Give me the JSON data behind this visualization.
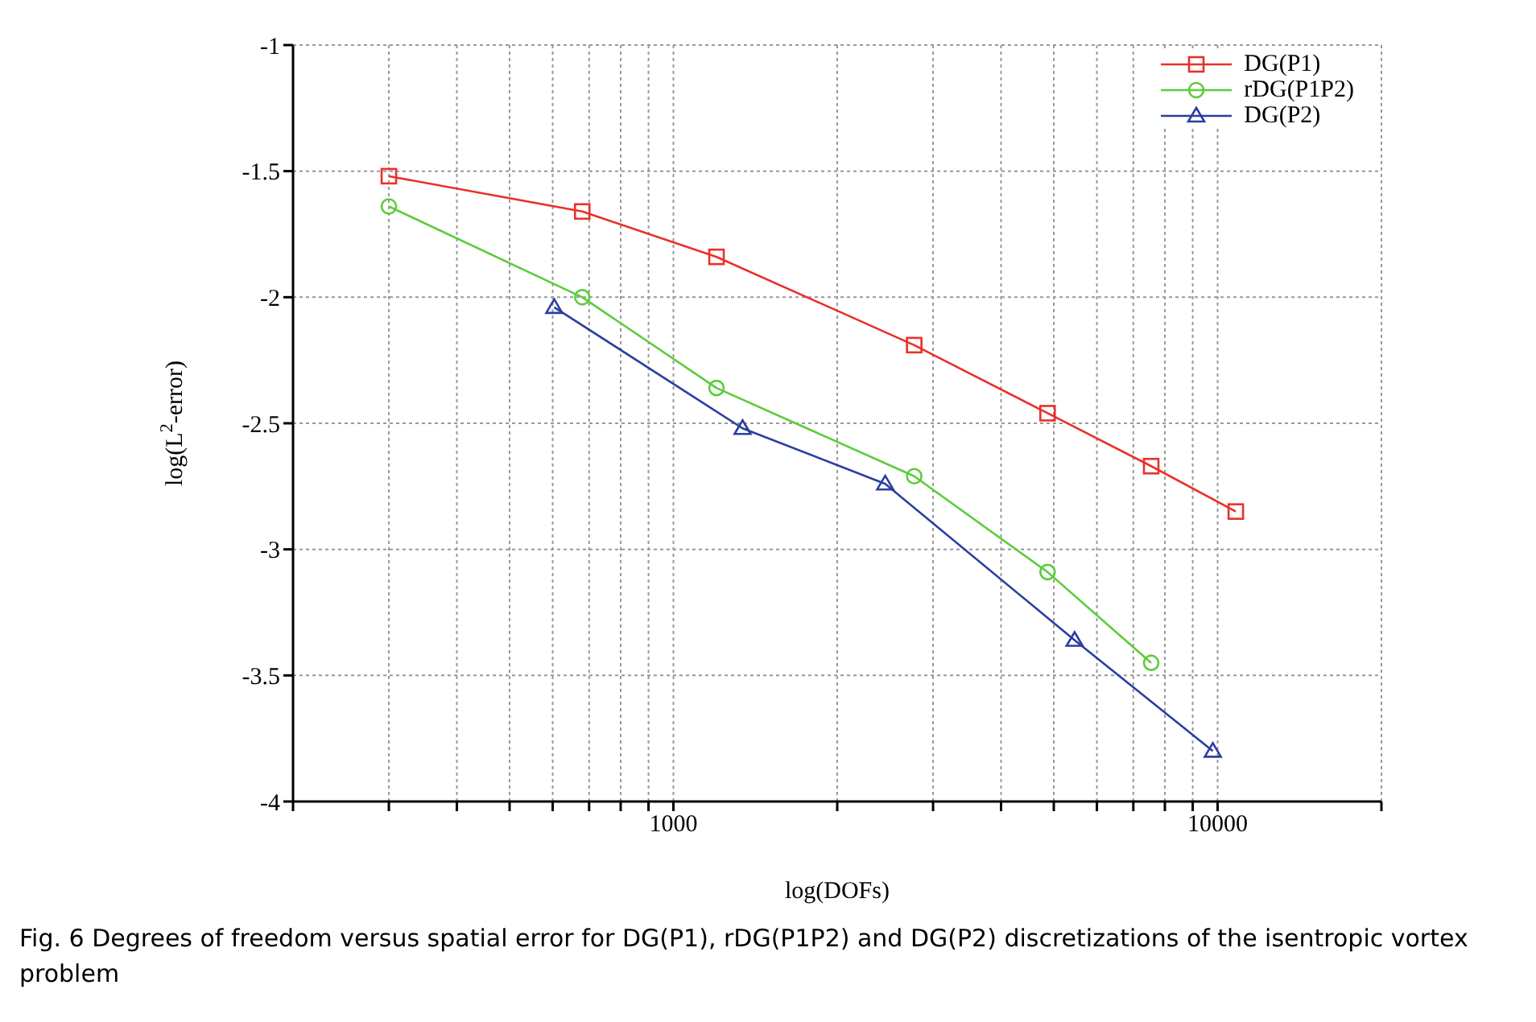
{
  "chart_data": {
    "type": "line",
    "xlabel": "log(DOFs)",
    "ylabel": "log(L$^{2}$-error)",
    "log": "x",
    "grid": true,
    "legend": "top right",
    "line_style": "solid",
    "xlim": [
      200,
      20000
    ],
    "ylim": [
      -4,
      -1
    ],
    "xticks": [
      {
        "value": 200,
        "label": null
      },
      {
        "value": 300,
        "label": null
      },
      {
        "value": 400,
        "label": null
      },
      {
        "value": 500,
        "label": null
      },
      {
        "value": 600,
        "label": null
      },
      {
        "value": 700,
        "label": null
      },
      {
        "value": 800,
        "label": null
      },
      {
        "value": 900,
        "label": null
      },
      1000,
      {
        "value": 2000,
        "label": null
      },
      {
        "value": 3000,
        "label": null
      },
      {
        "value": 4000,
        "label": null
      },
      {
        "value": 5000,
        "label": null
      },
      {
        "value": 6000,
        "label": null
      },
      {
        "value": 7000,
        "label": null
      },
      {
        "value": 8000,
        "label": null
      },
      {
        "value": 9000,
        "label": null
      },
      10000,
      {
        "value": 20000,
        "label": null
      }
    ],
    "yticks": [
      -4,
      -3.5,
      -3,
      -2.5,
      -2,
      -1.5,
      -1
    ],
    "series": [
      {
        "name": "DG(P1)",
        "color": "#e8312a",
        "marker": "square",
        "x": [
          300,
          680,
          1200,
          2770,
          4870,
          7550,
          10800
        ],
        "values": [
          -1.52,
          -1.66,
          -1.84,
          -2.19,
          -2.46,
          -2.67,
          -2.85
        ]
      },
      {
        "name": "rDG(P1P2)",
        "color": "#5ccc3c",
        "marker": "circle",
        "x": [
          300,
          680,
          1200,
          2770,
          4870,
          7550
        ],
        "values": [
          -1.64,
          -2.0,
          -2.36,
          -2.71,
          -3.09,
          -3.45
        ]
      },
      {
        "name": "DG(P2)",
        "color": "#2b3ea0",
        "marker": "triangle",
        "x": [
          604,
          1340,
          2450,
          5460,
          9800
        ],
        "values": [
          -2.04,
          -2.52,
          -2.74,
          -3.36,
          -3.8
        ]
      }
    ],
    "annotations": [
      "Fig. 6  Degrees of freedom versus spatial error for DG(P1), rDG(P1P2) and DG(P2) discretizations of the isentropic vortex problem"
    ]
  }
}
